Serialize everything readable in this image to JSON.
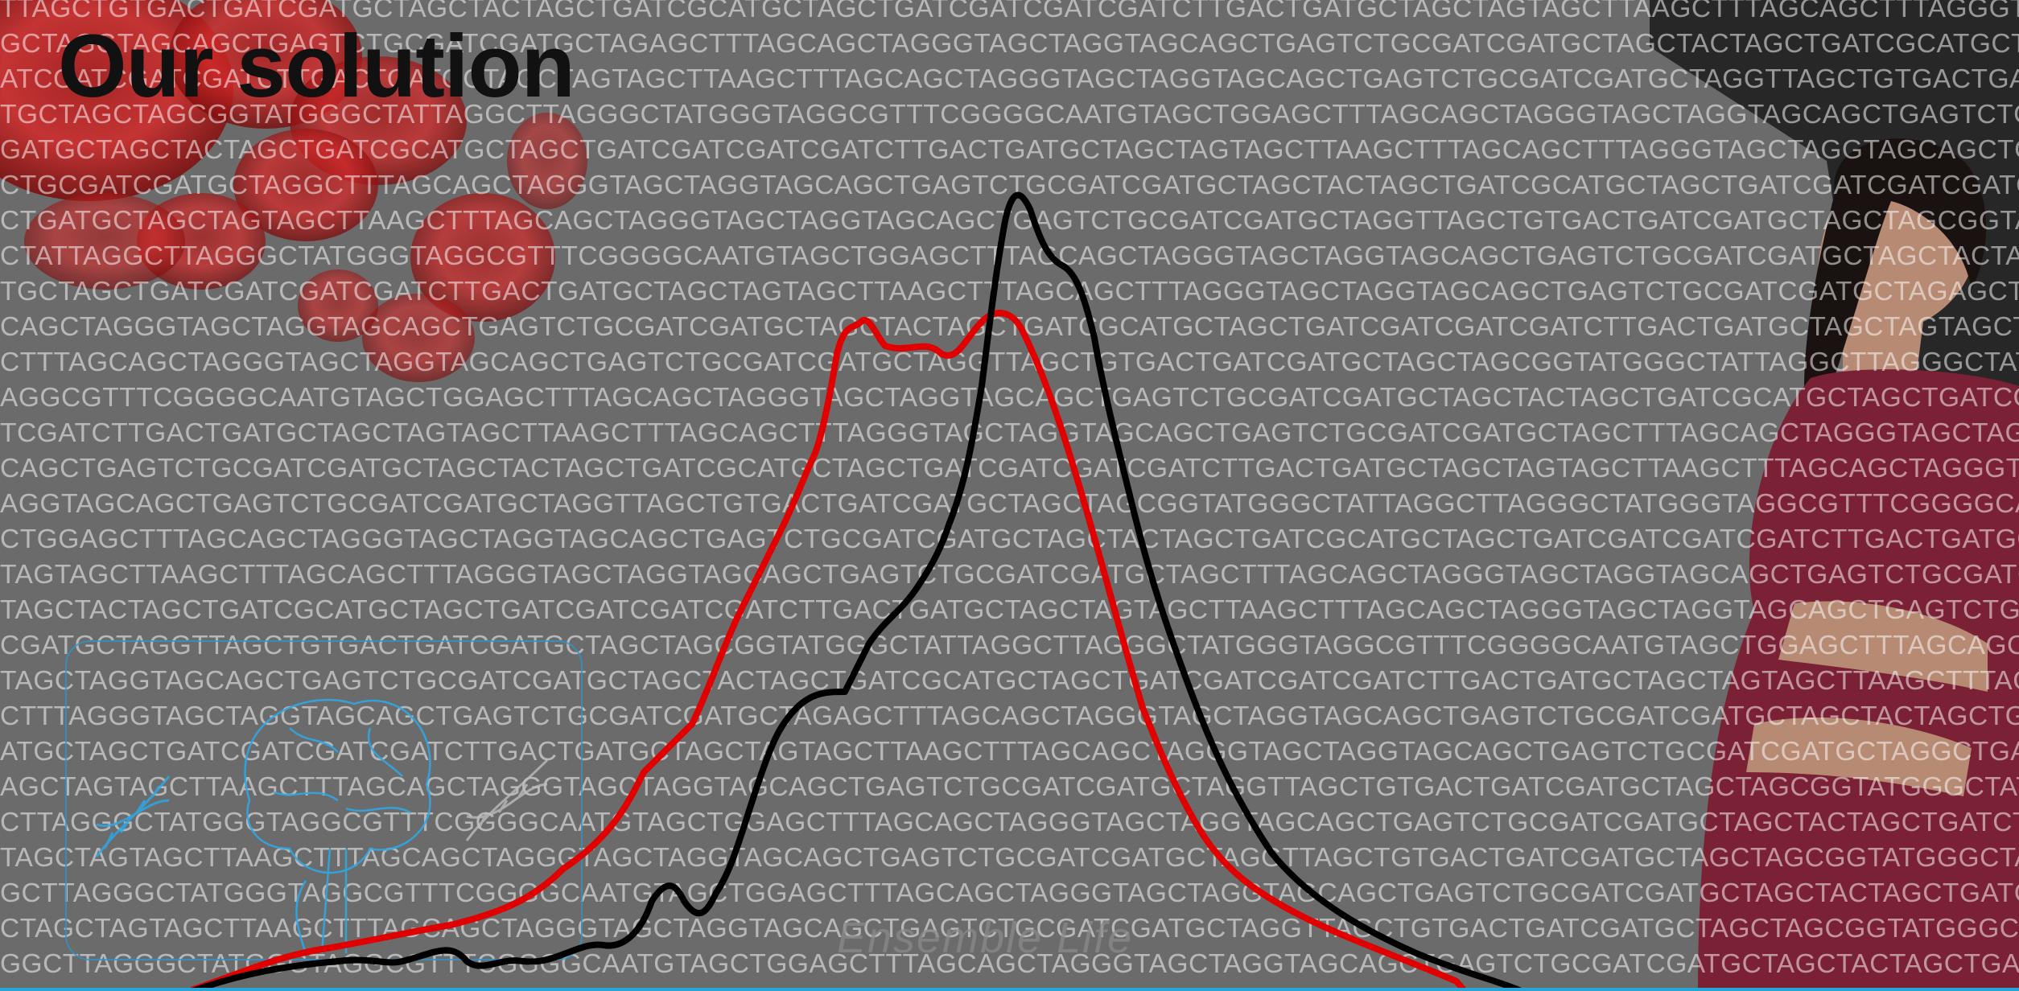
{
  "slide": {
    "title": "Our solution",
    "watermark": "Ensemble Life"
  },
  "colors": {
    "background": "#6b6b6b",
    "curve_a": "#e00000",
    "curve_b": "#000000",
    "accent_line": "#26a6d6"
  },
  "dna_lines": [
    "TTAGCTGTGACTGATCGATGCTAGCTACTAGCTGATCGCATGCTAGCTGATCGATCGATCGATCTTGACTGATGCTAGCTAGTAGCTTAAGCTTTAGCAGCTTTAGGGTAG",
    "GCTAGGTAGCAGCTGAGTCTGCGATCGATGCTAGAGCTTTAGCAGCTAGGGTAGCTAGGTAGCAGCTGAGTCTGCGATCGATGCTAGCTACTAGCTGATCGCATGCTAGCTG",
    "ATCGATCGATCGATCTTGACTGATGCTAGCTAGTAGCTTAAGCTTTAGCAGCTAGGGTAGCTAGGTAGCAGCTGAGTCTGCGATCGATGCTAGGTTAGCTGTGACTGATCGA",
    "TGCTAGCTAGCGGTATGGGCTATTAGGCTTAGGGCTATGGGTAGGCGTTTCGGGGCAATGTAGCTGGAGCTTTAGCAGCTAGGGTAGCTAGGTAGCAGCTGAGTCTGCGATC",
    "GATGCTAGCTACTAGCTGATCGCATGCTAGCTGATCGATCGATCGATCTTGACTGATGCTAGCTAGTAGCTTAAGCTTTAGCAGCTTTAGGGTAGCTAGGTAGCAGCTGAGT",
    "CTGCGATCGATGCTAGGCTTTAGCAGCTAGGGTAGCTAGGTAGCAGCTGAGTCTGCGATCGATGCTAGCTACTAGCTGATCGCATGCTAGCTGATCGATCGATCGATCTTGA",
    "CTGATGCTAGCTAGTAGCTTAAGCTTTAGCAGCTAGGGTAGCTAGGTAGCAGCTGAGTCTGCGATCGATGCTAGGTTAGCTGTGACTGATCGATGCTAGCTAGCGGTATGGG",
    "CTATTAGGCTTAGGGCTATGGGTAGGCGTTTCGGGGCAATGTAGCTGGAGCTTTAGCAGCTAGGGTAGCTAGGTAGCAGCTGAGTCTGCGATCGATGCTAGCTACTAGCGCA",
    "TGCTAGCTGATCGATCGATCGATCTTGACTGATGCTAGCTAGTAGCTTAAGCTTTAGCAGCTTTAGGGTAGCTAGGTAGCAGCTGAGTCTGCGATCGATGCTAGAGCTTTAG",
    "CAGCTAGGGTAGCTAGGTAGCAGCTGAGTCTGCGATCGATGCTAGCTACTAGCTGATCGCATGCTAGCTGATCGATCGATCGATCTTGACTGATGCTAGCTAGTAGCTTAAG",
    "CTTTAGCAGCTAGGGTAGCTAGGTAGCAGCTGAGTCTGCGATCGATGCTAGGTTAGCTGTGACTGATCGATGCTAGCTAGCGGTATGGGCTATTAGGCTTAGGGCTATGGGT",
    "AGGCGTTTCGGGGCAATGTAGCTGGAGCTTTAGCAGCTAGGGTAGCTAGGTAGCAGCTGAGTCTGCGATCGATGCTAGCTACTAGCTGATCGCATGCTAGCTGATCGATCGA",
    "TCGATCTTGACTGATGCTAGCTAGTAGCTTAAGCTTTAGCAGCTTTAGGGTAGCTAGGTAGCAGCTGAGTCTGCGATCGATGCTAGCTTTAGCAGCTAGGGTAGCTAGGTAG",
    "CAGCTGAGTCTGCGATCGATGCTAGCTACTAGCTGATCGCATGCTAGCTGATCGATCGATCGATCTTGACTGATGCTAGCTAGTAGCTTAAGCTTTAGCAGCTAGGGTAGCT",
    "AGGTAGCAGCTGAGTCTGCGATCGATGCTAGGTTAGCTGTGACTGATCGATGCTAGCTAGCGGTATGGGCTATTAGGCTTAGGGCTATGGGTAGGCGTTTCGGGGCAATGTAG",
    "CTGGAGCTTTAGCAGCTAGGGTAGCTAGGTAGCAGCTGAGTCTGCGATCGATGCTAGCTACTAGCTGATCGCATGCTAGCTGATCGATCGATCGATCTTGACTGATGCTAGC",
    "TAGTAGCTTAAGCTTTAGCAGCTTTAGGGTAGCTAGGTAGCAGCTGAGTCTGCGATCGATGCTAGCTTTAGCAGCTAGGGTAGCTAGGTAGCAGCTGAGTCTGCGATCGATGC",
    "TAGCTACTAGCTGATCGCATGCTAGCTGATCGATCGATCGATCTTGACTGATGCTAGCTAGTAGCTTAAGCTTTAGCAGCTAGGGTAGCTAGGTAGCAGCTGAGTCTGCGAT",
    "CGATGCTAGGTTAGCTGTGACTGATCGATGCTAGCTAGCGGTATGGGCTATTAGGCTTAGGGCTATGGGTAGGCGTTTCGGGGCAATGTAGCTGGAGCTTTAGCAGCTAGGG",
    "TAGCTAGGTAGCAGCTGAGTCTGCGATCGATGCTAGCTACTAGCTGATCGCATGCTAGCTGATCGATCGATCGATCTTGACTGATGCTAGCTAGTAGCTTAAGCTTTAGCAG",
    "CTTTAGGGTAGCTAGGTAGCAGCTGAGTCTGCGATCGATGCTAGAGCTTTAGCAGCTAGGGTAGCTAGGTAGCAGCTGAGTCTGCGATCGATGCTAGCTACTAGCTGATCGC",
    "ATGCTAGCTGATCGATCGATCGATCTTGACTGATGCTAGCTAGTAGCTTAAGCTTTAGCAGCTAGGGTAGCTAGGTAGCAGCTGAGTCTGCGATCGATGCTAGGCTGATGCT",
    "AGCTAGTAGCTTAAGCTTTAGCAGCTAGGGTAGCTAGGTAGCAGCTGAGTCTGCGATCGATGCTAGGTTAGCTGTGACTGATCGATGCTAGCTAGCGGTATGGGCTATTAGG",
    "CTTAGGGCTATGGGTAGGCGTTTCGGGGCAATGTAGCTGGAGCTTTAGCAGCTAGGGTAGCTAGGTAGCAGCTGAGTCTGCGATCGATGCTAGCTACTAGCTGATCTGATGC",
    "TAGCTAGTAGCTTAAGCTTTAGCAGCTAGGGTAGCTAGGTAGCAGCTGAGTCTGCGATCGATGCTAGGTTAGCTGTGACTGATCGATGCTAGCTAGCGGTATGGGCTATTAG",
    "GCTTAGGGCTATGGGTAGGCGTTTCGGGGCAATGTAGCTGGAGCTTTAGCAGCTAGGGTAGCTAGGTAGCAGCTGAGTCTGCGATCGATGCTAGCTACTAGCTGATCTGATG",
    "CTAGCTAGTAGCTTAAGCTTTAGCAGCTAGGGTAGCTAGGTAGCAGCTGAGTCTGCGATCGATGCTAGGTTAGCTGTGACTGATCGATGCTAGCTAGCGGTATGGGCTATTA",
    "GGCTTAGGGCTATGGGTAGGCGTTTCGGGGCAATGTAGCTGGAGCTTTAGCAGCTAGGGTAGCTAGGTAGCAGCTGAGTCTGCGATCGATGCTAGCTACTAGCTGATTTGCT"
  ]
}
